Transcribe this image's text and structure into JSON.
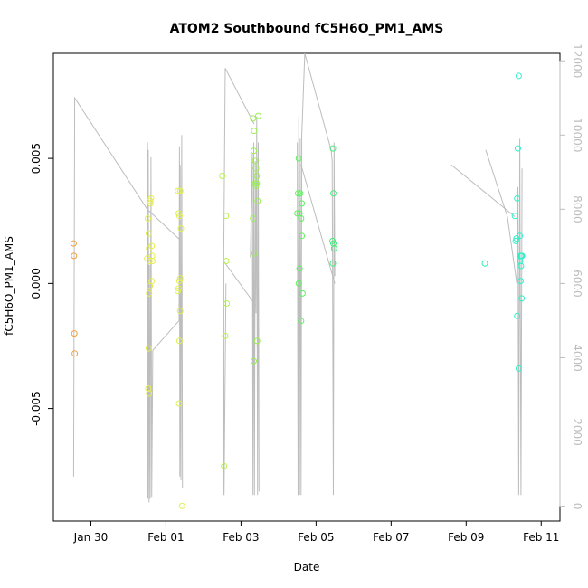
{
  "chart_data": {
    "type": "scatter",
    "title": "ATOM2 Southbound fC5H6O_PM1_AMS",
    "xlabel": "Date",
    "ylabel": "fC5H6O_PM1_AMS",
    "x_ticks": [
      {
        "day": 29.5,
        "label": "Jan 30"
      },
      {
        "day": 31.5,
        "label": "Feb 01"
      },
      {
        "day": 33.5,
        "label": "Feb 03"
      },
      {
        "day": 35.5,
        "label": "Feb 05"
      },
      {
        "day": 37.5,
        "label": "Feb 07"
      },
      {
        "day": 39.5,
        "label": "Feb 09"
      },
      {
        "day": 41.5,
        "label": "Feb 11"
      }
    ],
    "xlim": [
      28.5,
      42
    ],
    "ylim": [
      -0.0095,
      0.0092
    ],
    "y_ticks": [
      {
        "value": -0.005,
        "label": "-0.005"
      },
      {
        "value": 0.0,
        "label": "0.000"
      },
      {
        "value": 0.005,
        "label": "0.005"
      }
    ],
    "y2_ticks": [
      {
        "value": 0,
        "label": "0"
      },
      {
        "value": 2000,
        "label": "2000"
      },
      {
        "value": 4000,
        "label": "4000"
      },
      {
        "value": 6000,
        "label": "6000"
      },
      {
        "value": 8000,
        "label": "8000"
      },
      {
        "value": 10000,
        "label": "10000"
      },
      {
        "value": 12000,
        "label": "12000"
      }
    ],
    "y2lim": [
      -400,
      12200
    ],
    "grid": false,
    "points": [
      {
        "x": 29.04,
        "y": 0.0016,
        "color": "#f0a040"
      },
      {
        "x": 29.05,
        "y": 0.0011,
        "color": "#f0a040"
      },
      {
        "x": 29.06,
        "y": -0.002,
        "color": "#f0a040"
      },
      {
        "x": 29.07,
        "y": -0.0028,
        "color": "#f0a040"
      },
      {
        "x": 31.0,
        "y": 0.001,
        "color": "#e6ee50"
      },
      {
        "x": 31.02,
        "y": 0.0026,
        "color": "#e6ee50"
      },
      {
        "x": 31.04,
        "y": 0.002,
        "color": "#e6ee50"
      },
      {
        "x": 31.05,
        "y": 0.0014,
        "color": "#e6ee50"
      },
      {
        "x": 31.06,
        "y": 0.0009,
        "color": "#e6ee50"
      },
      {
        "x": 31.07,
        "y": -0.0001,
        "color": "#e6ee50"
      },
      {
        "x": 31.08,
        "y": 0.0033,
        "color": "#e6ee50"
      },
      {
        "x": 31.09,
        "y": 0.0032,
        "color": "#e6ee50"
      },
      {
        "x": 31.1,
        "y": 0.0034,
        "color": "#e6ee50"
      },
      {
        "x": 31.12,
        "y": 0.0015,
        "color": "#e6ee50"
      },
      {
        "x": 31.13,
        "y": 0.0011,
        "color": "#e6ee50"
      },
      {
        "x": 31.14,
        "y": 0.0009,
        "color": "#e6ee50"
      },
      {
        "x": 31.05,
        "y": -0.0004,
        "color": "#e6ee50"
      },
      {
        "x": 31.04,
        "y": -0.0026,
        "color": "#e6ee50"
      },
      {
        "x": 31.03,
        "y": -0.0042,
        "color": "#e6ee50"
      },
      {
        "x": 31.05,
        "y": -0.0044,
        "color": "#e6ee50"
      },
      {
        "x": 31.12,
        "y": 0.0001,
        "color": "#e6ee50"
      },
      {
        "x": 31.82,
        "y": 0.0037,
        "color": "#e0f050"
      },
      {
        "x": 31.84,
        "y": 0.0028,
        "color": "#e0f050"
      },
      {
        "x": 31.86,
        "y": 0.0027,
        "color": "#e0f050"
      },
      {
        "x": 31.88,
        "y": 0.0037,
        "color": "#e0f050"
      },
      {
        "x": 31.9,
        "y": 0.0022,
        "color": "#e0f050"
      },
      {
        "x": 31.82,
        "y": -0.0003,
        "color": "#e0f050"
      },
      {
        "x": 31.84,
        "y": -0.0002,
        "color": "#e0f050"
      },
      {
        "x": 31.86,
        "y": 0.0001,
        "color": "#e0f050"
      },
      {
        "x": 31.88,
        "y": 0.0002,
        "color": "#e0f050"
      },
      {
        "x": 31.88,
        "y": -0.0011,
        "color": "#e0f050"
      },
      {
        "x": 31.86,
        "y": -0.0023,
        "color": "#e0f050"
      },
      {
        "x": 31.85,
        "y": -0.0048,
        "color": "#e0f050"
      },
      {
        "x": 31.93,
        "y": -0.0089,
        "color": "#e0f050"
      },
      {
        "x": 33.0,
        "y": 0.0043,
        "color": "#b8f050"
      },
      {
        "x": 33.1,
        "y": 0.0027,
        "color": "#b8f050"
      },
      {
        "x": 33.11,
        "y": 0.0009,
        "color": "#b8f050"
      },
      {
        "x": 33.12,
        "y": -0.0008,
        "color": "#b8f050"
      },
      {
        "x": 33.08,
        "y": -0.0021,
        "color": "#b8f050"
      },
      {
        "x": 33.05,
        "y": -0.0073,
        "color": "#b8f050"
      },
      {
        "x": 33.82,
        "y": 0.0066,
        "color": "#98f050"
      },
      {
        "x": 33.85,
        "y": 0.0061,
        "color": "#98f050"
      },
      {
        "x": 33.96,
        "y": 0.0067,
        "color": "#98f050"
      },
      {
        "x": 33.84,
        "y": 0.0053,
        "color": "#98f050"
      },
      {
        "x": 33.88,
        "y": 0.0049,
        "color": "#98f050"
      },
      {
        "x": 33.9,
        "y": 0.0046,
        "color": "#98f050"
      },
      {
        "x": 33.92,
        "y": 0.0043,
        "color": "#98f050"
      },
      {
        "x": 33.88,
        "y": 0.004,
        "color": "#98f050"
      },
      {
        "x": 33.9,
        "y": 0.0039,
        "color": "#98f050"
      },
      {
        "x": 33.92,
        "y": 0.004,
        "color": "#98f050"
      },
      {
        "x": 33.94,
        "y": 0.0033,
        "color": "#98f050"
      },
      {
        "x": 33.82,
        "y": 0.0026,
        "color": "#98f050"
      },
      {
        "x": 33.86,
        "y": 0.0012,
        "color": "#98f050"
      },
      {
        "x": 33.93,
        "y": -0.0023,
        "color": "#98f050"
      },
      {
        "x": 33.84,
        "y": -0.0031,
        "color": "#98f050"
      },
      {
        "x": 35.0,
        "y": 0.0028,
        "color": "#60f060"
      },
      {
        "x": 35.02,
        "y": 0.0036,
        "color": "#60f060"
      },
      {
        "x": 35.04,
        "y": 0.005,
        "color": "#60f060"
      },
      {
        "x": 35.06,
        "y": 0.0028,
        "color": "#60f060"
      },
      {
        "x": 35.08,
        "y": 0.0036,
        "color": "#60f060"
      },
      {
        "x": 35.1,
        "y": 0.0026,
        "color": "#60f060"
      },
      {
        "x": 35.12,
        "y": 0.0032,
        "color": "#60f060"
      },
      {
        "x": 35.06,
        "y": 0.0006,
        "color": "#60f060"
      },
      {
        "x": 35.04,
        "y": 0.0,
        "color": "#60f060"
      },
      {
        "x": 35.12,
        "y": 0.0019,
        "color": "#60f060"
      },
      {
        "x": 35.14,
        "y": -0.0004,
        "color": "#60f060"
      },
      {
        "x": 35.1,
        "y": -0.0015,
        "color": "#60f060"
      },
      {
        "x": 35.95,
        "y": 0.0054,
        "color": "#40f078"
      },
      {
        "x": 35.96,
        "y": 0.0036,
        "color": "#40f078"
      },
      {
        "x": 35.94,
        "y": 0.0017,
        "color": "#40f078"
      },
      {
        "x": 35.96,
        "y": 0.0016,
        "color": "#40f078"
      },
      {
        "x": 35.98,
        "y": 0.0014,
        "color": "#40f078"
      },
      {
        "x": 35.95,
        "y": 0.0008,
        "color": "#40f078"
      },
      {
        "x": 40.0,
        "y": 0.0008,
        "color": "#30f0a8"
      },
      {
        "x": 40.8,
        "y": 0.0027,
        "color": "#30f0c8"
      },
      {
        "x": 40.84,
        "y": 0.0018,
        "color": "#30f0c8"
      },
      {
        "x": 40.86,
        "y": 0.0034,
        "color": "#30f0c8"
      },
      {
        "x": 40.88,
        "y": 0.0054,
        "color": "#30f0c8"
      },
      {
        "x": 40.9,
        "y": 0.0083,
        "color": "#30f0c8"
      },
      {
        "x": 40.82,
        "y": 0.0017,
        "color": "#30f0c8"
      },
      {
        "x": 40.93,
        "y": 0.0019,
        "color": "#30f0c8"
      },
      {
        "x": 40.95,
        "y": 0.0011,
        "color": "#30f0c8"
      },
      {
        "x": 40.97,
        "y": 0.0011,
        "color": "#30f0c8"
      },
      {
        "x": 40.99,
        "y": 0.0011,
        "color": "#30f0c8"
      },
      {
        "x": 40.94,
        "y": 0.0009,
        "color": "#30f0c8"
      },
      {
        "x": 40.96,
        "y": 0.0007,
        "color": "#30f0c8"
      },
      {
        "x": 40.95,
        "y": 0.0001,
        "color": "#30f0c8"
      },
      {
        "x": 40.98,
        "y": -0.0006,
        "color": "#30f0c8"
      },
      {
        "x": 40.86,
        "y": -0.0013,
        "color": "#30f0c8"
      },
      {
        "x": 40.9,
        "y": -0.0034,
        "color": "#30f0c8"
      }
    ],
    "line_series": {
      "color": "#bdbdbd",
      "segments": [
        [
          [
            29.04,
            800
          ],
          [
            29.07,
            11000
          ],
          [
            31.0,
            8000
          ],
          [
            31.85,
            7200
          ]
        ],
        [
          [
            31.0,
            7200
          ],
          [
            31.01,
            9800
          ],
          [
            31.02,
            200
          ],
          [
            31.03,
            9600
          ],
          [
            31.05,
            100
          ],
          [
            31.06,
            6500
          ],
          [
            31.08,
            200
          ],
          [
            31.1,
            9400
          ],
          [
            31.12,
            250
          ],
          [
            31.15,
            4200
          ]
        ],
        [
          [
            31.15,
            4200
          ],
          [
            31.85,
            5000
          ],
          [
            31.86,
            9700
          ],
          [
            31.87,
            800
          ],
          [
            31.88,
            9200
          ],
          [
            31.9,
            700
          ],
          [
            31.92,
            10000
          ],
          [
            31.94,
            500
          ]
        ],
        [
          [
            33.03,
            300
          ],
          [
            33.04,
            6600
          ],
          [
            33.08,
            11800
          ],
          [
            33.85,
            10300
          ]
        ],
        [
          [
            33.04,
            6600
          ],
          [
            33.9,
            5400
          ],
          [
            33.92,
            10500
          ],
          [
            33.94,
            300
          ],
          [
            33.96,
            9800
          ],
          [
            33.98,
            400
          ]
        ],
        [
          [
            33.04,
            6600
          ],
          [
            33.05,
            300
          ],
          [
            33.1,
            6000
          ]
        ],
        [
          [
            33.75,
            6700
          ],
          [
            33.8,
            9500
          ],
          [
            33.82,
            300
          ],
          [
            33.84,
            9800
          ],
          [
            33.86,
            300
          ],
          [
            33.88,
            9300
          ],
          [
            33.9,
            5200
          ]
        ],
        [
          [
            35.0,
            9800
          ],
          [
            35.02,
            300
          ],
          [
            35.04,
            10500
          ],
          [
            35.06,
            300
          ],
          [
            35.08,
            9900
          ],
          [
            35.1,
            300
          ],
          [
            35.12,
            10000
          ],
          [
            35.2,
            12200
          ],
          [
            35.9,
            9600
          ]
        ],
        [
          [
            35.9,
            9600
          ],
          [
            35.93,
            9300
          ],
          [
            35.96,
            300
          ],
          [
            35.98,
            9800
          ],
          [
            36.0,
            6200
          ]
        ],
        [
          [
            35.1,
            9200
          ],
          [
            36.0,
            6000
          ]
        ],
        [
          [
            40.02,
            9600
          ],
          [
            40.6,
            7800
          ],
          [
            40.85,
            6000
          ],
          [
            40.88,
            8600
          ],
          [
            40.9,
            300
          ],
          [
            40.93,
            9900
          ],
          [
            40.96,
            300
          ],
          [
            40.99,
            9100
          ]
        ],
        [
          [
            39.1,
            9200
          ],
          [
            40.8,
            7800
          ]
        ]
      ]
    }
  }
}
